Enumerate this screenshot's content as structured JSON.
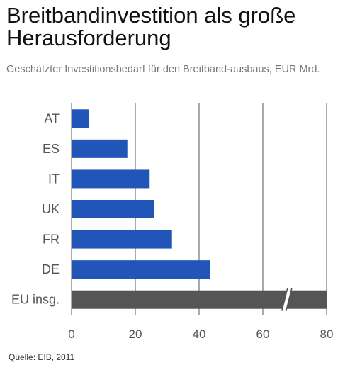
{
  "chart_data": {
    "type": "bar",
    "orientation": "horizontal",
    "title": "Breitbandinvestition als große Herausforderung",
    "subtitle": "Geschätzter Investitionsbedarf für den Breitband-ausbaus, EUR Mrd.",
    "categories": [
      "AT",
      "ES",
      "IT",
      "UK",
      "FR",
      "DE",
      "EU insg."
    ],
    "values": [
      5.5,
      17.5,
      24.5,
      26,
      31.5,
      43.5,
      80
    ],
    "highlight_color": "#2255b8",
    "total_color": "#555555",
    "total_bar_axis_break": true,
    "xlim": [
      0,
      80
    ],
    "x_ticks": [
      0,
      20,
      40,
      60,
      80
    ],
    "grid": true,
    "source": "Quelle: EIB, 2011"
  }
}
